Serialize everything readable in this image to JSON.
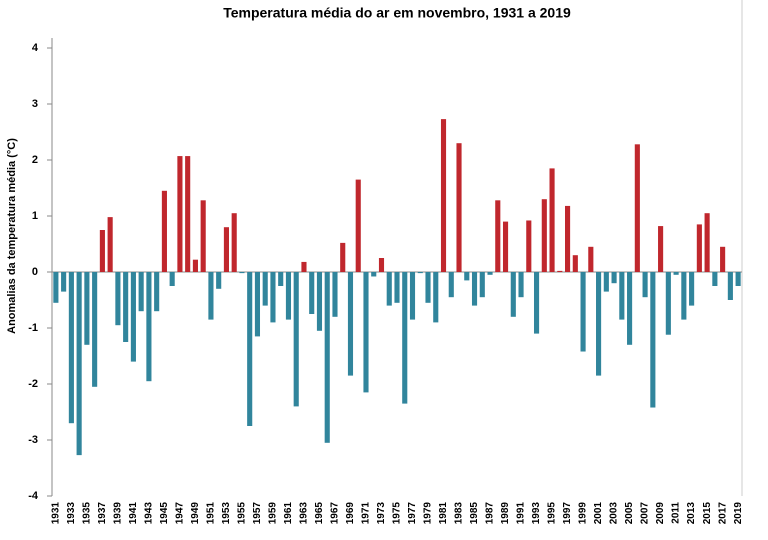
{
  "chart_data": {
    "type": "bar",
    "title": "Temperatura média do ar em novembro, 1931 a 2019",
    "y_label": "Anomalias da temperatura média (°C)",
    "categories": [
      "1931",
      null,
      "1933",
      null,
      "1935",
      null,
      "1937",
      null,
      "1939",
      null,
      "1941",
      null,
      "1943",
      null,
      "1945",
      null,
      "1947",
      null,
      "1949",
      null,
      "1951",
      null,
      "1953",
      null,
      "1955",
      null,
      "1957",
      null,
      "1959",
      null,
      "1961",
      null,
      "1963",
      null,
      "1965",
      null,
      "1967",
      null,
      "1969",
      null,
      "1971",
      null,
      "1973",
      null,
      "1975",
      null,
      "1977",
      null,
      "1979",
      null,
      "1981",
      null,
      "1983",
      null,
      "1985",
      null,
      "1987",
      null,
      "1989",
      null,
      "1991",
      null,
      "1993",
      null,
      "1995",
      null,
      "1997",
      null,
      "1999",
      null,
      "2001",
      null,
      "2003",
      null,
      "2005",
      null,
      "2007",
      null,
      "2009",
      null,
      "2011",
      null,
      "2013",
      null,
      "2015",
      null,
      "2017",
      null,
      "2019"
    ],
    "values": [
      -0.55,
      -0.35,
      -2.7,
      -3.27,
      -1.3,
      -2.05,
      0.75,
      0.98,
      -0.95,
      -1.25,
      -1.6,
      -0.7,
      -1.95,
      -0.7,
      1.45,
      -0.25,
      2.07,
      2.07,
      0.22,
      1.28,
      -0.85,
      -0.3,
      0.8,
      1.05,
      -0.02,
      -2.75,
      -1.15,
      -0.6,
      -0.9,
      -0.25,
      -0.85,
      -2.4,
      0.18,
      -0.75,
      -1.05,
      -3.05,
      -0.8,
      0.52,
      -1.85,
      1.65,
      -2.15,
      -0.08,
      0.25,
      -0.6,
      -0.55,
      -2.35,
      -0.85,
      -0.02,
      -0.55,
      -0.9,
      2.73,
      -0.45,
      2.3,
      -0.15,
      -0.6,
      -0.45,
      -0.05,
      1.28,
      0.9,
      -0.8,
      -0.45,
      0.92,
      -1.1,
      1.3,
      1.85,
      0.02,
      1.18,
      0.3,
      -1.42,
      0.45,
      -1.85,
      -0.35,
      -0.2,
      -0.85,
      -1.3,
      2.28,
      -0.45,
      -2.42,
      0.82,
      -1.12,
      -0.05,
      -0.85,
      -0.6,
      0.85,
      1.05,
      -0.25,
      0.45,
      -0.5,
      -0.25
    ],
    "colors": {
      "positive": "#c0272d",
      "negative": "#31859c"
    },
    "ylim": [
      -4,
      4
    ],
    "yticks": [
      -4,
      -3,
      -2,
      -1,
      0,
      1,
      2,
      3,
      4
    ],
    "grid": false
  }
}
